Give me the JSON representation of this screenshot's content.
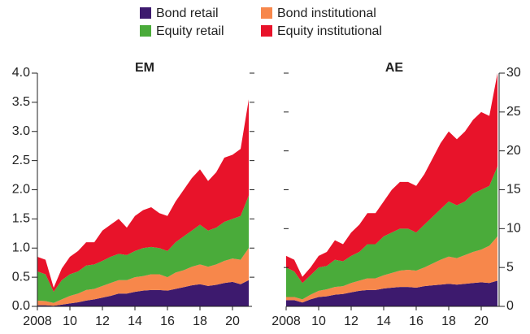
{
  "chart_data": [
    {
      "type": "stacked_area",
      "title": "EM",
      "x": [
        2008,
        2008.5,
        2009,
        2009.5,
        2010,
        2010.5,
        2011,
        2011.5,
        2012,
        2012.5,
        2013,
        2013.5,
        2014,
        2014.5,
        2015,
        2015.5,
        2016,
        2016.5,
        2017,
        2017.5,
        2018,
        2018.5,
        2019,
        2019.5,
        2020,
        2020.5,
        2021
      ],
      "series": [
        {
          "name": "Bond retail",
          "color": "#3d1a6e",
          "values": [
            0.02,
            0.02,
            0.01,
            0.03,
            0.05,
            0.07,
            0.1,
            0.12,
            0.15,
            0.18,
            0.22,
            0.22,
            0.25,
            0.27,
            0.28,
            0.28,
            0.27,
            0.3,
            0.33,
            0.36,
            0.38,
            0.35,
            0.37,
            0.4,
            0.42,
            0.38,
            0.45
          ]
        },
        {
          "name": "Bond institutional",
          "color": "#f7874b",
          "values": [
            0.08,
            0.07,
            0.05,
            0.09,
            0.13,
            0.15,
            0.18,
            0.18,
            0.2,
            0.22,
            0.23,
            0.23,
            0.25,
            0.25,
            0.27,
            0.27,
            0.23,
            0.28,
            0.29,
            0.32,
            0.34,
            0.33,
            0.35,
            0.38,
            0.4,
            0.42,
            0.55
          ]
        },
        {
          "name": "Equity retail",
          "color": "#4aab3a",
          "values": [
            0.5,
            0.46,
            0.19,
            0.33,
            0.37,
            0.38,
            0.42,
            0.42,
            0.43,
            0.45,
            0.45,
            0.43,
            0.45,
            0.48,
            0.47,
            0.45,
            0.45,
            0.52,
            0.58,
            0.62,
            0.68,
            0.62,
            0.63,
            0.67,
            0.68,
            0.75,
            0.9
          ]
        },
        {
          "name": "Equity institutional",
          "color": "#e8132a",
          "values": [
            0.25,
            0.25,
            0.07,
            0.2,
            0.3,
            0.35,
            0.4,
            0.38,
            0.52,
            0.55,
            0.6,
            0.47,
            0.6,
            0.65,
            0.68,
            0.6,
            0.6,
            0.7,
            0.8,
            0.9,
            0.95,
            0.85,
            0.95,
            1.1,
            1.1,
            1.15,
            1.65
          ]
        }
      ],
      "xlim": [
        2008,
        2021.2
      ],
      "xticks": [
        2008,
        {
          "value": 2010,
          "label": "10"
        },
        {
          "value": 2012,
          "label": "12"
        },
        {
          "value": 2014,
          "label": "14"
        },
        {
          "value": 2016,
          "label": "16"
        },
        {
          "value": 2018,
          "label": "18"
        },
        {
          "value": 2020,
          "label": "20"
        }
      ],
      "ylim": [
        0,
        4
      ],
      "yticks": [
        {
          "value": 0,
          "label": "0.0"
        },
        0.5,
        {
          "value": 1,
          "label": "1.0"
        },
        1.5,
        {
          "value": 2,
          "label": "2.0"
        },
        2.5,
        {
          "value": 3,
          "label": "3.0"
        },
        3.5,
        {
          "value": 4,
          "label": "4.0"
        }
      ],
      "axis_side": "left"
    },
    {
      "type": "stacked_area",
      "title": "AE",
      "x": [
        2008,
        2008.5,
        2009,
        2009.5,
        2010,
        2010.5,
        2011,
        2011.5,
        2012,
        2012.5,
        2013,
        2013.5,
        2014,
        2014.5,
        2015,
        2015.5,
        2016,
        2016.5,
        2017,
        2017.5,
        2018,
        2018.5,
        2019,
        2019.5,
        2020,
        2020.5,
        2021
      ],
      "series": [
        {
          "color": "#3d1a6e",
          "values": [
            0.8,
            0.8,
            0.5,
            0.9,
            1.2,
            1.3,
            1.5,
            1.6,
            1.8,
            2.0,
            2.1,
            2.1,
            2.3,
            2.4,
            2.5,
            2.5,
            2.4,
            2.6,
            2.7,
            2.8,
            2.9,
            2.8,
            2.9,
            3.0,
            3.1,
            3.0,
            3.3
          ]
        },
        {
          "color": "#f7874b",
          "values": [
            0.4,
            0.4,
            0.4,
            0.6,
            0.8,
            0.9,
            1.0,
            1.0,
            1.2,
            1.3,
            1.5,
            1.5,
            1.7,
            1.9,
            2.1,
            2.2,
            2.2,
            2.4,
            2.8,
            3.2,
            3.5,
            3.4,
            3.7,
            4.0,
            4.2,
            4.8,
            5.7
          ]
        },
        {
          "color": "#4aab3a",
          "values": [
            3.8,
            3.3,
            2.1,
            2.5,
            3.0,
            3.0,
            3.5,
            3.2,
            3.5,
            3.7,
            4.4,
            4.4,
            5.0,
            5.2,
            5.4,
            5.3,
            4.9,
            5.5,
            6.0,
            6.5,
            7.1,
            6.8,
            6.9,
            7.5,
            7.7,
            7.7,
            9.0
          ]
        },
        {
          "color": "#e8132a",
          "values": [
            1.5,
            1.5,
            0.8,
            1.0,
            1.5,
            1.8,
            2.5,
            2.2,
            3.0,
            3.5,
            4.0,
            4.0,
            4.5,
            5.5,
            6.0,
            6.0,
            6.0,
            6.5,
            7.5,
            8.5,
            9.0,
            8.5,
            9.0,
            9.5,
            10.0,
            9.0,
            12.0
          ]
        }
      ],
      "xlim": [
        2008,
        2021.1
      ],
      "xticks": [
        2008,
        {
          "value": 2010,
          "label": "10"
        },
        {
          "value": 2012,
          "label": "12"
        },
        {
          "value": 2014,
          "label": "14"
        },
        {
          "value": 2016,
          "label": "16"
        },
        {
          "value": 2018,
          "label": "18"
        },
        {
          "value": 2020,
          "label": "20"
        }
      ],
      "ylim": [
        0,
        30
      ],
      "yticks": [
        0,
        5,
        10,
        15,
        20,
        25,
        30
      ],
      "axis_side": "right"
    }
  ]
}
